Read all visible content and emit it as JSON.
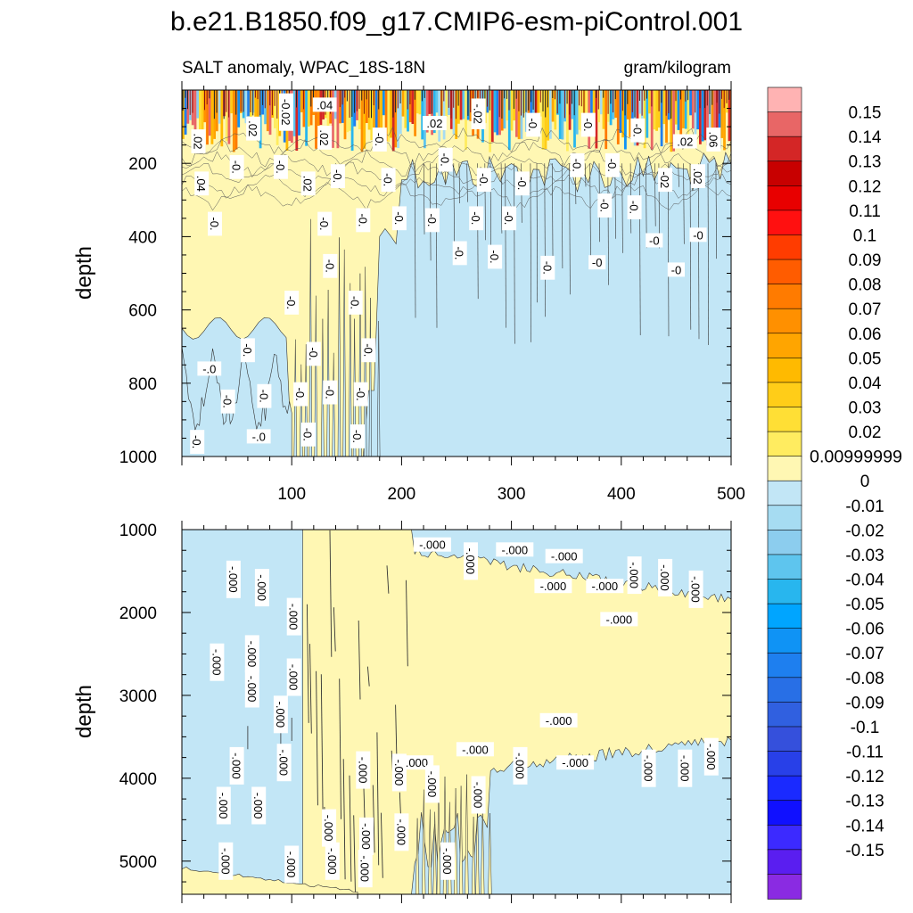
{
  "chart_data": {
    "type": "heatmap",
    "title": "b.e21.B1850.f09_g17.CMIP6-esm-piControl.001",
    "subtitle_left": "SALT anomaly, WPAC_18S-18N",
    "subtitle_right": "gram/kilogram",
    "colors": {
      "background": "#ffffff",
      "zero_pos": "#fff7b3",
      "zero_neg": "#c2e6f6",
      "axis": "#000000",
      "contour": "#333333"
    },
    "x": {
      "range": [
        0,
        500
      ],
      "tick_labels": [
        "100",
        "200",
        "300",
        "400",
        "500"
      ],
      "tick_values": [
        100,
        200,
        300,
        400,
        500
      ]
    },
    "panels": [
      {
        "name": "upper-ocean",
        "ylabel": "depth",
        "ylim": [
          0,
          1000
        ],
        "y_tick_labels": [
          "200",
          "400",
          "600",
          "800",
          "1000"
        ],
        "y_tick_values": [
          200,
          400,
          600,
          800,
          1000
        ],
        "contour_labels": [
          {
            "text": ".04",
            "x": 130,
            "y": 40,
            "rot": 0
          },
          {
            "text": "-0.02",
            "x": 95,
            "y": 60,
            "rot": 90
          },
          {
            "text": ".02",
            "x": 65,
            "y": 105,
            "rot": 90
          },
          {
            "text": ".02",
            "x": 15,
            "y": 140,
            "rot": 90
          },
          {
            "text": ".02",
            "x": 130,
            "y": 130,
            "rot": 90
          },
          {
            "text": "-0.",
            "x": 180,
            "y": 135,
            "rot": 90
          },
          {
            "text": ".02",
            "x": 230,
            "y": 90,
            "rot": 0
          },
          {
            "text": "-.02",
            "x": 270,
            "y": 65,
            "rot": 90
          },
          {
            "text": "-0.",
            "x": 320,
            "y": 95,
            "rot": 90
          },
          {
            "text": "-0.",
            "x": 370,
            "y": 95,
            "rot": 90
          },
          {
            "text": "-0.",
            "x": 415,
            "y": 110,
            "rot": 90
          },
          {
            "text": ".02",
            "x": 458,
            "y": 140,
            "rot": 0
          },
          {
            "text": ".06",
            "x": 484,
            "y": 135,
            "rot": 90
          },
          {
            "text": "-0.",
            "x": 50,
            "y": 210,
            "rot": 90
          },
          {
            "text": ".04",
            "x": 18,
            "y": 255,
            "rot": 90
          },
          {
            "text": "-0.",
            "x": 90,
            "y": 210,
            "rot": 90
          },
          {
            "text": ".02",
            "x": 115,
            "y": 255,
            "rot": 90
          },
          {
            "text": "-0.",
            "x": 142,
            "y": 235,
            "rot": 90
          },
          {
            "text": "-0.",
            "x": 188,
            "y": 245,
            "rot": 90
          },
          {
            "text": "-0.",
            "x": 240,
            "y": 190,
            "rot": 90
          },
          {
            "text": "-0.",
            "x": 275,
            "y": 245,
            "rot": 90
          },
          {
            "text": "-0.",
            "x": 310,
            "y": 255,
            "rot": 90
          },
          {
            "text": "-0.",
            "x": 360,
            "y": 205,
            "rot": 90
          },
          {
            "text": "-0.",
            "x": 392,
            "y": 205,
            "rot": 90
          },
          {
            "text": "-02",
            "x": 440,
            "y": 245,
            "rot": 90
          },
          {
            "text": ".02",
            "x": 470,
            "y": 235,
            "rot": 90
          },
          {
            "text": "-0.",
            "x": 30,
            "y": 365,
            "rot": 90
          },
          {
            "text": "-0.",
            "x": 130,
            "y": 365,
            "rot": 90
          },
          {
            "text": "-0.",
            "x": 165,
            "y": 355,
            "rot": 90
          },
          {
            "text": "-0.",
            "x": 198,
            "y": 350,
            "rot": 90
          },
          {
            "text": "-0.",
            "x": 228,
            "y": 355,
            "rot": 90
          },
          {
            "text": "-0.",
            "x": 268,
            "y": 350,
            "rot": 90
          },
          {
            "text": "-0.",
            "x": 298,
            "y": 350,
            "rot": 90
          },
          {
            "text": "-0.",
            "x": 385,
            "y": 315,
            "rot": 90
          },
          {
            "text": "-0.",
            "x": 412,
            "y": 320,
            "rot": 90
          },
          {
            "text": "-0",
            "x": 430,
            "y": 410,
            "rot": 0
          },
          {
            "text": "-0",
            "x": 470,
            "y": 395,
            "rot": 0
          },
          {
            "text": "-0.",
            "x": 253,
            "y": 445,
            "rot": 90
          },
          {
            "text": "-0.",
            "x": 285,
            "y": 455,
            "rot": 90
          },
          {
            "text": "-0.",
            "x": 333,
            "y": 485,
            "rot": 90
          },
          {
            "text": "-0",
            "x": 378,
            "y": 470,
            "rot": 0
          },
          {
            "text": "-0",
            "x": 450,
            "y": 490,
            "rot": 0
          },
          {
            "text": "-0.",
            "x": 135,
            "y": 480,
            "rot": 90
          },
          {
            "text": "-0.",
            "x": 100,
            "y": 580,
            "rot": 90
          },
          {
            "text": "-0.",
            "x": 158,
            "y": 580,
            "rot": 90
          },
          {
            "text": "-0.",
            "x": 60,
            "y": 710,
            "rot": 90
          },
          {
            "text": "-0.",
            "x": 120,
            "y": 720,
            "rot": 90
          },
          {
            "text": "-0.",
            "x": 170,
            "y": 710,
            "rot": 90
          },
          {
            "text": "-.0",
            "x": 25,
            "y": 760,
            "rot": 0
          },
          {
            "text": "-0.",
            "x": 42,
            "y": 850,
            "rot": 90
          },
          {
            "text": "-0.",
            "x": 75,
            "y": 835,
            "rot": 90
          },
          {
            "text": "-0.",
            "x": 108,
            "y": 830,
            "rot": 90
          },
          {
            "text": "-0.",
            "x": 135,
            "y": 825,
            "rot": 90
          },
          {
            "text": "-0.",
            "x": 163,
            "y": 830,
            "rot": 90
          },
          {
            "text": "-0.",
            "x": 14,
            "y": 960,
            "rot": 90
          },
          {
            "text": "-.0",
            "x": 70,
            "y": 945,
            "rot": 0
          },
          {
            "text": "-0.",
            "x": 115,
            "y": 940,
            "rot": 90
          },
          {
            "text": "-0.",
            "x": 160,
            "y": 945,
            "rot": 90
          }
        ]
      },
      {
        "name": "deep-ocean",
        "ylabel": "depth",
        "ylim": [
          1000,
          5400
        ],
        "y_tick_labels": [
          "1000",
          "2000",
          "3000",
          "4000",
          "5000"
        ],
        "y_tick_values": [
          1000,
          2000,
          3000,
          4000,
          5000
        ],
        "contour_labels": [
          {
            "text": "-.000",
            "x": 228,
            "y": 1180,
            "rot": 0
          },
          {
            "text": "-.000",
            "x": 263,
            "y": 1380,
            "rot": 90
          },
          {
            "text": "-.000",
            "x": 303,
            "y": 1240,
            "rot": 0
          },
          {
            "text": "-.000",
            "x": 348,
            "y": 1320,
            "rot": 0
          },
          {
            "text": "-.000",
            "x": 338,
            "y": 1680,
            "rot": 0
          },
          {
            "text": "-.000",
            "x": 385,
            "y": 1680,
            "rot": 0
          },
          {
            "text": "-.000",
            "x": 398,
            "y": 2080,
            "rot": 0
          },
          {
            "text": "-.000",
            "x": 412,
            "y": 1550,
            "rot": 90
          },
          {
            "text": "-.000",
            "x": 440,
            "y": 1580,
            "rot": 90
          },
          {
            "text": "-.000",
            "x": 468,
            "y": 1720,
            "rot": 90
          },
          {
            "text": "-.000",
            "x": 47,
            "y": 1600,
            "rot": 90
          },
          {
            "text": "-.000",
            "x": 73,
            "y": 1700,
            "rot": 90
          },
          {
            "text": "-.000",
            "x": 102,
            "y": 2050,
            "rot": 90
          },
          {
            "text": "-.000",
            "x": 32,
            "y": 2600,
            "rot": 90
          },
          {
            "text": "-.000",
            "x": 64,
            "y": 2500,
            "rot": 90
          },
          {
            "text": "-.000",
            "x": 102,
            "y": 2780,
            "rot": 90
          },
          {
            "text": "-.000",
            "x": 64,
            "y": 2920,
            "rot": 90
          },
          {
            "text": "-.000",
            "x": 90,
            "y": 3230,
            "rot": 90
          },
          {
            "text": "-.000",
            "x": 343,
            "y": 3300,
            "rot": 0
          },
          {
            "text": "-.000",
            "x": 267,
            "y": 3650,
            "rot": 0
          },
          {
            "text": "-.000",
            "x": 212,
            "y": 3810,
            "rot": 0
          },
          {
            "text": "-.000",
            "x": 358,
            "y": 3810,
            "rot": 0
          },
          {
            "text": "-.000",
            "x": 50,
            "y": 3850,
            "rot": 90
          },
          {
            "text": "-.000",
            "x": 93,
            "y": 3810,
            "rot": 90
          },
          {
            "text": "-.000",
            "x": 165,
            "y": 3900,
            "rot": 90
          },
          {
            "text": "-.000",
            "x": 198,
            "y": 3930,
            "rot": 90
          },
          {
            "text": "-.000",
            "x": 228,
            "y": 4070,
            "rot": 90
          },
          {
            "text": "-.000",
            "x": 308,
            "y": 3850,
            "rot": 90
          },
          {
            "text": "-.000",
            "x": 425,
            "y": 3880,
            "rot": 90
          },
          {
            "text": "-.000",
            "x": 458,
            "y": 3880,
            "rot": 90
          },
          {
            "text": "-.000",
            "x": 482,
            "y": 3740,
            "rot": 90
          },
          {
            "text": "-.000",
            "x": 270,
            "y": 4200,
            "rot": 90
          },
          {
            "text": "-.000",
            "x": 38,
            "y": 4330,
            "rot": 90
          },
          {
            "text": "-.000",
            "x": 70,
            "y": 4330,
            "rot": 90
          },
          {
            "text": "-.000",
            "x": 134,
            "y": 4600,
            "rot": 90
          },
          {
            "text": "-.000",
            "x": 168,
            "y": 4700,
            "rot": 90
          },
          {
            "text": "-.000",
            "x": 200,
            "y": 4650,
            "rot": 90
          },
          {
            "text": "-.000",
            "x": 40,
            "y": 5000,
            "rot": 90
          },
          {
            "text": "-.000",
            "x": 100,
            "y": 5040,
            "rot": 90
          },
          {
            "text": "-.000",
            "x": 137,
            "y": 5000,
            "rot": 90
          },
          {
            "text": "-.000",
            "x": 167,
            "y": 5090,
            "rot": 90
          },
          {
            "text": "-.000",
            "x": 242,
            "y": 5000,
            "rot": 90
          }
        ]
      }
    ],
    "colorbar": {
      "colors": [
        "#ffb3b3",
        "#e86666",
        "#d42626",
        "#c80000",
        "#e80000",
        "#ff1010",
        "#ff3c00",
        "#ff5c00",
        "#ff7b00",
        "#ff9000",
        "#ffa500",
        "#ffba00",
        "#ffcd18",
        "#ffdf35",
        "#ffec60",
        "#fff7b3",
        "#c2e6f6",
        "#a6dcf2",
        "#8ccdee",
        "#5ec5ee",
        "#28b6ee",
        "#00a5ff",
        "#0f93f5",
        "#1e7fef",
        "#286fe6",
        "#3060e0",
        "#3550dc",
        "#2840e8",
        "#1a2aff",
        "#1010ff",
        "#3c2aff",
        "#5a1ef0",
        "#8a2be2"
      ],
      "labels": [
        "0.15",
        "0.14",
        "0.13",
        "0.12",
        "0.11",
        "0.1",
        "0.09",
        "0.08",
        "0.07",
        "0.06",
        "0.05",
        "0.04",
        "0.03",
        "0.02",
        "0.00999999",
        "0",
        "-0.01",
        "-0.02",
        "-0.03",
        "-0.04",
        "-0.05",
        "-0.06",
        "-0.07",
        "-0.08",
        "-0.09",
        "-0.1",
        "-0.11",
        "-0.12",
        "-0.13",
        "-0.14",
        "-0.15"
      ]
    }
  }
}
